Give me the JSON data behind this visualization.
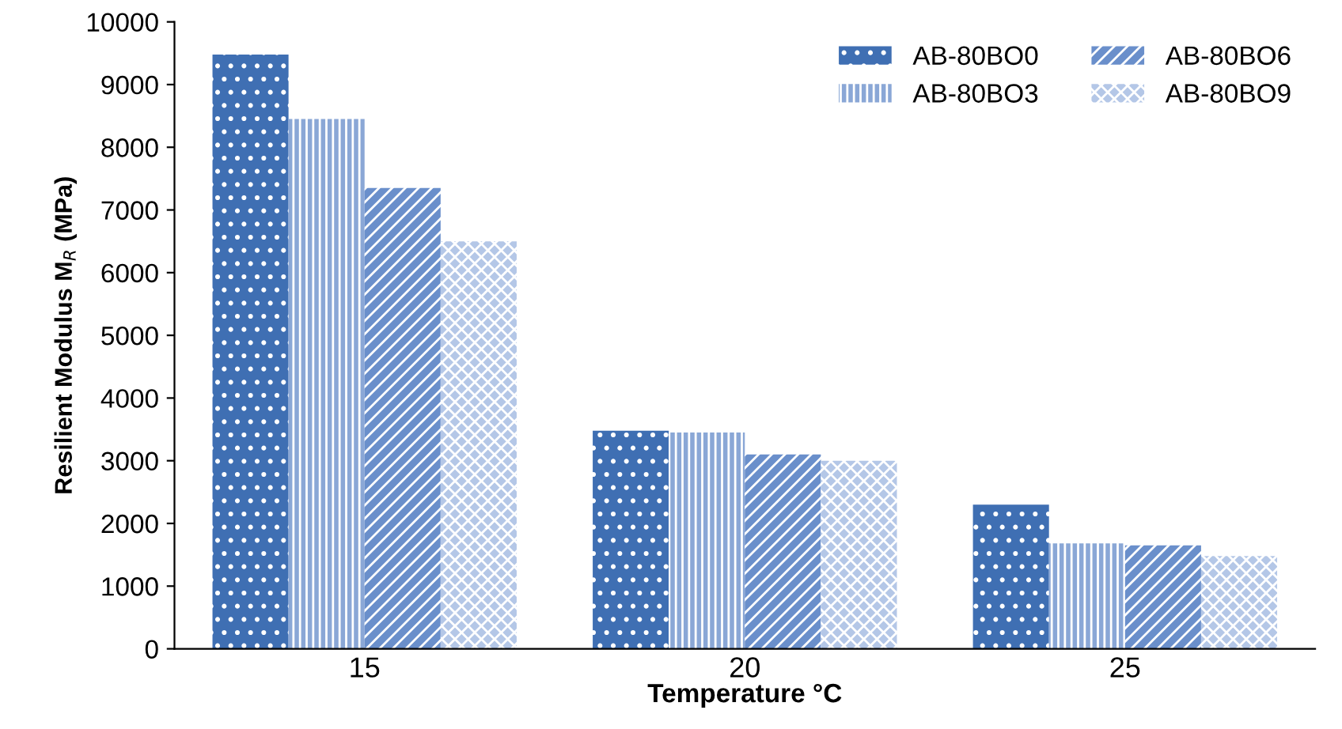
{
  "chart_data": {
    "type": "bar",
    "xlabel": "Temperature °C",
    "ylabel": "Resilient Modulus M$_{R}$ (MPa)",
    "categories": [
      "15",
      "20",
      "25"
    ],
    "series": [
      {
        "name": "AB-80BO0",
        "color": "#3f6fb3",
        "values": [
          9480,
          3480,
          2300
        ]
      },
      {
        "name": "AB-80BO3",
        "color": "#8aa7d6",
        "values": [
          8450,
          3450,
          1680
        ]
      },
      {
        "name": "AB-80BO6",
        "color": "#6a8fcb",
        "values": [
          7350,
          3100,
          1650
        ]
      },
      {
        "name": "AB-80BO9",
        "color": "#b4c7e7",
        "values": [
          6500,
          3000,
          1480
        ]
      }
    ],
    "ylim": [
      0,
      10000
    ],
    "yticks": [
      0,
      1000,
      2000,
      3000,
      4000,
      5000,
      6000,
      7000,
      8000,
      9000,
      10000
    ],
    "legend": "top right",
    "grid": false
  }
}
